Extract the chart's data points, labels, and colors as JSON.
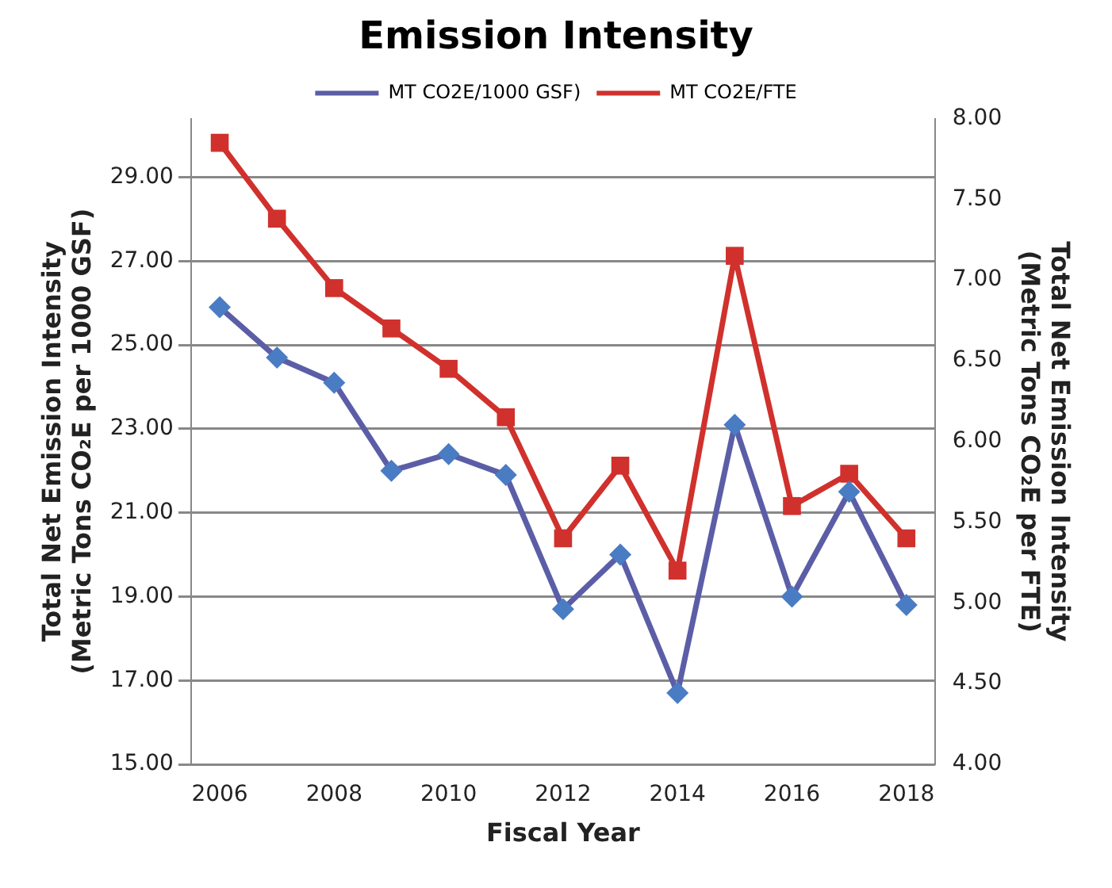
{
  "chart_data": {
    "type": "line",
    "title": "Emission Intensity",
    "xlabel": "Fiscal Year",
    "ylabel": "Total Net Emission Intensity\n(Metric Tons CO₂E per 1000 GSF)",
    "y2label": "Total Net Emission Intensity\n(Metric Tons CO₂E per FTE)",
    "x": [
      2006,
      2007,
      2008,
      2009,
      2010,
      2011,
      2012,
      2013,
      2014,
      2015,
      2016,
      2017,
      2018
    ],
    "xlim": [
      2005.5,
      2018.5
    ],
    "xticks": [
      2006,
      2008,
      2010,
      2012,
      2014,
      2016,
      2018
    ],
    "ylim": [
      15,
      30.4
    ],
    "yticks": [
      {
        "value": 15,
        "label": "15.00"
      },
      {
        "value": 17,
        "label": "17.00"
      },
      {
        "value": 19,
        "label": "19.00"
      },
      {
        "value": 21,
        "label": "21.00"
      },
      {
        "value": 23,
        "label": "23.00"
      },
      {
        "value": 25,
        "label": "25.00"
      },
      {
        "value": 27,
        "label": "27.00"
      },
      {
        "value": 29,
        "label": "29.00"
      }
    ],
    "y2lim": [
      4,
      8
    ],
    "y2ticks": [
      {
        "value": 4,
        "label": "4.00"
      },
      {
        "value": 4.5,
        "label": "4.50"
      },
      {
        "value": 5,
        "label": "5.00"
      },
      {
        "value": 5.5,
        "label": "5.50"
      },
      {
        "value": 6,
        "label": "6.00"
      },
      {
        "value": 6.5,
        "label": "6.50"
      },
      {
        "value": 7,
        "label": "7.00"
      },
      {
        "value": 7.5,
        "label": "7.50"
      },
      {
        "value": 8,
        "label": "8.00"
      }
    ],
    "grid": "y",
    "legend": "top",
    "series": [
      {
        "name": "MT CO2E/1000 GSF)",
        "color": "#5b5ea6",
        "marker": "diamond",
        "values": [
          25.9,
          24.7,
          24.1,
          22.0,
          22.4,
          21.9,
          18.7,
          20.0,
          16.7,
          23.1,
          19.0,
          21.5,
          18.8
        ]
      },
      {
        "name": "MT CO2E/FTE",
        "color": "#d0312d",
        "marker": "square",
        "axis": "y2",
        "values": [
          7.85,
          7.38,
          6.95,
          6.7,
          6.45,
          6.15,
          5.4,
          5.85,
          5.2,
          7.15,
          5.6,
          5.8,
          5.4
        ]
      }
    ]
  }
}
